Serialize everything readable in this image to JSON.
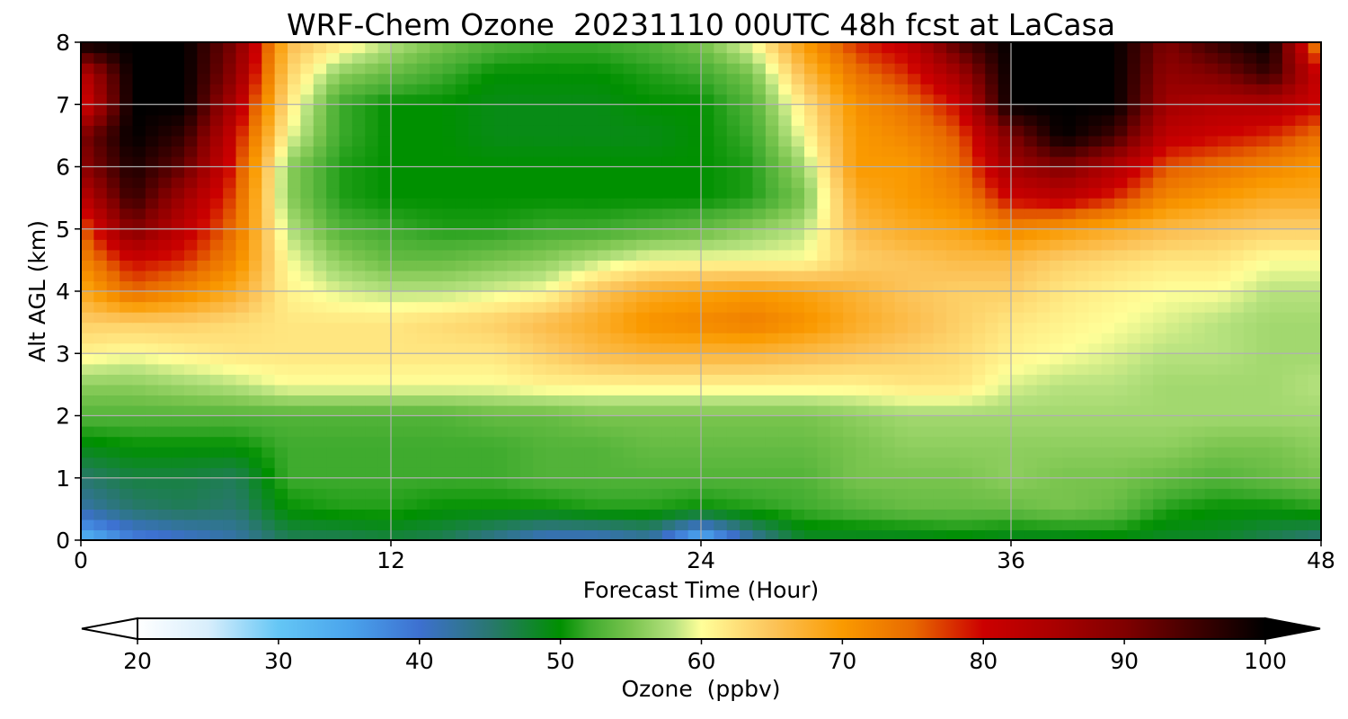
{
  "chart_data": {
    "type": "heatmap",
    "title": "WRF-Chem Ozone  20231110 00UTC 48h fcst at LaCasa",
    "xlabel": "Forecast Time (Hour)",
    "ylabel": "Alt AGL (km)",
    "xlim": [
      0,
      48
    ],
    "ylim": [
      0,
      8
    ],
    "x_ticks": [
      "0",
      "12",
      "24",
      "36",
      "48"
    ],
    "y_ticks": [
      "0",
      "1",
      "2",
      "3",
      "4",
      "5",
      "6",
      "7",
      "8"
    ],
    "grid": true,
    "x": [
      0,
      2,
      4,
      6,
      8,
      10,
      12,
      14,
      16,
      18,
      20,
      22,
      24,
      26,
      28,
      30,
      32,
      34,
      36,
      38,
      40,
      42,
      44,
      46,
      48
    ],
    "y": [
      0,
      0.5,
      1,
      1.5,
      2,
      2.5,
      3,
      3.5,
      4,
      4.5,
      5,
      5.5,
      6,
      6.5,
      7,
      7.5,
      8
    ],
    "z": [
      [
        32,
        38,
        40,
        42,
        46,
        46,
        47,
        46,
        43,
        40,
        40,
        42,
        32,
        42,
        48,
        48,
        48,
        49,
        48,
        48,
        49,
        48,
        48,
        46,
        44
      ],
      [
        42,
        45,
        46,
        45,
        50,
        51,
        51,
        50,
        50,
        50,
        51,
        51,
        50,
        51,
        52,
        53,
        54,
        54,
        54,
        55,
        54,
        51,
        50,
        50,
        51
      ],
      [
        45,
        47,
        47,
        46,
        52,
        52,
        52,
        52,
        52,
        53,
        53,
        53,
        53,
        53,
        53,
        55,
        55,
        55,
        56,
        55,
        55,
        54,
        53,
        54,
        55
      ],
      [
        49,
        50,
        50,
        50,
        52,
        52,
        52,
        52,
        52,
        53,
        53,
        54,
        54,
        54,
        54,
        55,
        56,
        56,
        56,
        56,
        56,
        56,
        55,
        55,
        56
      ],
      [
        53,
        53,
        53,
        53,
        53,
        53,
        53,
        53,
        54,
        54,
        55,
        55,
        55,
        55,
        55,
        56,
        57,
        57,
        57,
        57,
        57,
        57,
        57,
        57,
        57
      ],
      [
        56,
        56,
        57,
        58,
        60,
        60,
        60,
        60,
        60,
        61,
        61,
        61,
        61,
        61,
        61,
        61,
        62,
        62,
        59,
        58,
        58,
        57,
        57,
        57,
        58
      ],
      [
        61,
        60,
        61,
        62,
        62,
        62,
        62,
        62,
        62,
        64,
        66,
        67,
        67,
        67,
        66,
        65,
        64,
        63,
        61,
        60,
        59,
        58,
        58,
        57,
        57
      ],
      [
        64,
        64,
        64,
        63,
        62,
        62,
        62,
        63,
        64,
        66,
        68,
        71,
        72,
        73,
        71,
        68,
        66,
        64,
        62,
        61,
        60,
        59,
        58,
        57,
        57
      ],
      [
        68,
        75,
        72,
        68,
        61,
        59,
        58,
        58,
        59,
        60,
        65,
        68,
        69,
        70,
        69,
        67,
        65,
        64,
        64,
        62,
        61,
        60,
        60,
        58,
        58
      ],
      [
        72,
        80,
        78,
        72,
        60,
        56,
        54,
        54,
        55,
        56,
        58,
        60,
        60,
        60,
        60,
        64,
        65,
        66,
        66,
        64,
        63,
        62,
        62,
        60,
        60
      ],
      [
        75,
        90,
        82,
        74,
        58,
        53,
        52,
        51,
        51,
        52,
        52,
        53,
        54,
        56,
        58,
        66,
        68,
        69,
        72,
        70,
        68,
        66,
        65,
        64,
        64
      ],
      [
        82,
        96,
        86,
        76,
        56,
        51,
        50,
        50,
        50,
        50,
        50,
        50,
        50,
        51,
        55,
        68,
        70,
        72,
        80,
        82,
        78,
        72,
        70,
        68,
        68
      ],
      [
        88,
        98,
        92,
        78,
        56,
        51,
        50,
        50,
        50,
        50,
        50,
        50,
        50,
        51,
        57,
        70,
        70,
        74,
        86,
        90,
        84,
        76,
        74,
        72,
        70
      ],
      [
        90,
        100,
        96,
        80,
        60,
        52,
        50,
        50,
        49,
        49,
        49,
        49,
        50,
        52,
        60,
        70,
        72,
        76,
        90,
        100,
        95,
        82,
        80,
        78,
        74
      ],
      [
        78,
        100,
        100,
        84,
        62,
        52,
        50,
        50,
        49,
        49,
        49,
        50,
        50,
        53,
        62,
        71,
        74,
        80,
        100,
        100,
        100,
        86,
        84,
        84,
        80
      ],
      [
        82,
        100,
        100,
        88,
        64,
        56,
        54,
        52,
        50,
        50,
        50,
        51,
        52,
        55,
        66,
        74,
        78,
        86,
        100,
        100,
        100,
        88,
        90,
        96,
        80
      ],
      [
        100,
        100,
        100,
        90,
        66,
        62,
        58,
        55,
        53,
        52,
        52,
        53,
        55,
        60,
        70,
        78,
        82,
        94,
        100,
        100,
        100,
        90,
        96,
        100,
        70
      ]
    ],
    "colorbar": {
      "label": "Ozone  (ppbv)",
      "min": 20,
      "max": 100,
      "ticks": [
        "20",
        "30",
        "40",
        "50",
        "60",
        "70",
        "80",
        "90",
        "100"
      ],
      "extend": "both",
      "colors": [
        [
          20,
          "#ffffff"
        ],
        [
          25,
          "#d8eefc"
        ],
        [
          30,
          "#64c6f5"
        ],
        [
          35,
          "#4aa4ec"
        ],
        [
          40,
          "#3d70d0"
        ],
        [
          45,
          "#29776f"
        ],
        [
          50,
          "#009000"
        ],
        [
          52,
          "#3fab2e"
        ],
        [
          55,
          "#79c44e"
        ],
        [
          58,
          "#b7e27f"
        ],
        [
          60,
          "#ffff99"
        ],
        [
          62,
          "#ffe680"
        ],
        [
          65,
          "#fcc45a"
        ],
        [
          70,
          "#fa9a00"
        ],
        [
          75,
          "#e86a00"
        ],
        [
          80,
          "#cc0000"
        ],
        [
          85,
          "#aa0000"
        ],
        [
          90,
          "#800000"
        ],
        [
          95,
          "#400000"
        ],
        [
          100,
          "#000000"
        ]
      ]
    }
  }
}
